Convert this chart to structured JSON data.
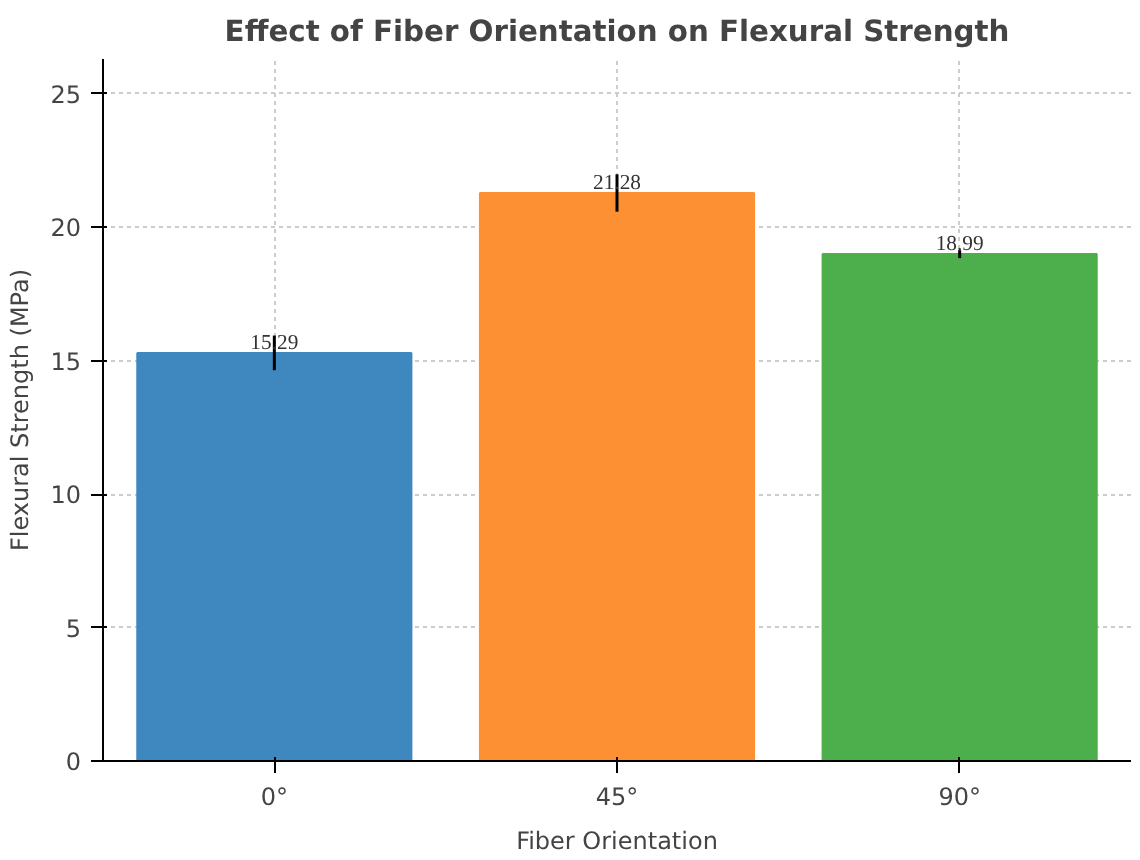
{
  "chart_data": {
    "type": "bar",
    "title": "Effect of Fiber Orientation on Flexural Strength",
    "xlabel": "Fiber Orientation",
    "ylabel": "Flexural Strength (MPa)",
    "categories": [
      "0°",
      "45°",
      "90°"
    ],
    "values": [
      15.29,
      21.28,
      18.99
    ],
    "colors": [
      "#3f88bf",
      "#fd9033",
      "#4caf4c"
    ],
    "errors": [
      0.65,
      0.7,
      0.15
    ],
    "data_labels": true,
    "ylim": [
      0,
      26.3
    ],
    "yticks": [
      0,
      5,
      10,
      15,
      20,
      25
    ],
    "grid": true
  }
}
